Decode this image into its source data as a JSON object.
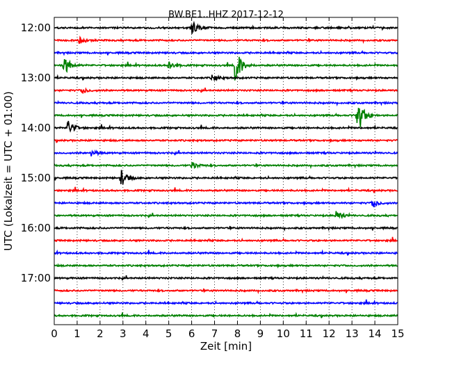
{
  "chart_data": {
    "type": "line",
    "title": "BW.BE1..HHZ 2017-12-12",
    "xlabel": "Zeit  [min]",
    "ylabel": "UTC (Lokalzeit = UTC + 01:00)",
    "xlim": [
      0,
      15
    ],
    "x_ticks": [
      "0",
      "1",
      "2",
      "3",
      "4",
      "5",
      "6",
      "7",
      "8",
      "9",
      "10",
      "11",
      "12",
      "13",
      "14",
      "15"
    ],
    "y_ticks": [
      "12:00",
      "13:00",
      "14:00",
      "15:00",
      "16:00",
      "17:00"
    ],
    "y_tick_rows": [
      0,
      4,
      8,
      12,
      16,
      20
    ],
    "grid": "vertical dotted at each minute",
    "trace_colors": [
      "#000000",
      "#ff0000",
      "#0000ff",
      "#008000"
    ],
    "trace_count": 24,
    "trace_interval_minutes": 15,
    "events": [
      {
        "row": 0,
        "minute": 6.0,
        "amplitude": 0.9
      },
      {
        "row": 1,
        "minute": 1.1,
        "amplitude": 0.5
      },
      {
        "row": 3,
        "minute": 0.4,
        "amplitude": 1.4
      },
      {
        "row": 3,
        "minute": 5.0,
        "amplitude": 0.6
      },
      {
        "row": 3,
        "minute": 7.9,
        "amplitude": 2.6
      },
      {
        "row": 4,
        "minute": 6.9,
        "amplitude": 0.5
      },
      {
        "row": 5,
        "minute": 1.2,
        "amplitude": 0.4
      },
      {
        "row": 7,
        "minute": 13.2,
        "amplitude": 3.1
      },
      {
        "row": 8,
        "minute": 0.6,
        "amplitude": 1.1
      },
      {
        "row": 10,
        "minute": 1.6,
        "amplitude": 0.4
      },
      {
        "row": 11,
        "minute": 6.0,
        "amplitude": 0.5
      },
      {
        "row": 12,
        "minute": 2.9,
        "amplitude": 1.1
      },
      {
        "row": 14,
        "minute": 13.9,
        "amplitude": 0.6
      },
      {
        "row": 15,
        "minute": 12.3,
        "amplitude": 0.6
      }
    ]
  }
}
